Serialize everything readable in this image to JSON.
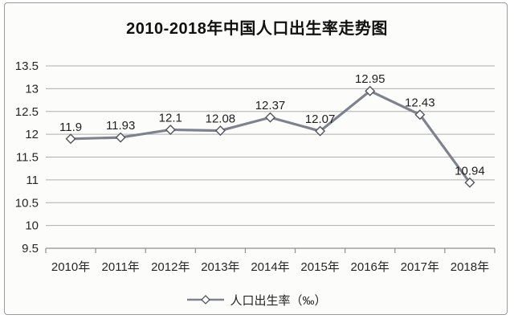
{
  "chart_data": {
    "type": "line",
    "title": "2010-2018年中国人口出生率走势图",
    "categories": [
      "2010年",
      "2011年",
      "2012年",
      "2013年",
      "2014年",
      "2015年",
      "2016年",
      "2017年",
      "2018年"
    ],
    "series": [
      {
        "name": "人口出生率（‰）",
        "values": [
          11.9,
          11.93,
          12.1,
          12.08,
          12.37,
          12.07,
          12.95,
          12.43,
          10.94
        ]
      }
    ],
    "data_labels": [
      "11.9",
      "11.93",
      "12.1",
      "12.08",
      "12.37",
      "12.07",
      "12.95",
      "12.43",
      "10.94"
    ],
    "xlabel": "",
    "ylabel": "",
    "ylim": [
      9.5,
      13.5
    ],
    "ytick_step": 0.5,
    "ytick_labels": [
      "9.5",
      "10",
      "10.5",
      "11",
      "11.5",
      "12",
      "12.5",
      "13",
      "13.5"
    ],
    "grid": "horizontal",
    "legend_position": "bottom",
    "legend_label": "人口出生率（‰）",
    "marker": "open-diamond",
    "colors": {
      "line": "#7e828e",
      "marker_fill": "#ffffff",
      "marker_stroke": "#54555c",
      "gridline": "#aeaeae",
      "axis": "#8f8f8f",
      "tick_text": "#262626",
      "data_label_text": "#1f1f1f",
      "title_text": "#111111",
      "frame_border": "#9b9b9b",
      "background": "#fcfcfb"
    }
  }
}
